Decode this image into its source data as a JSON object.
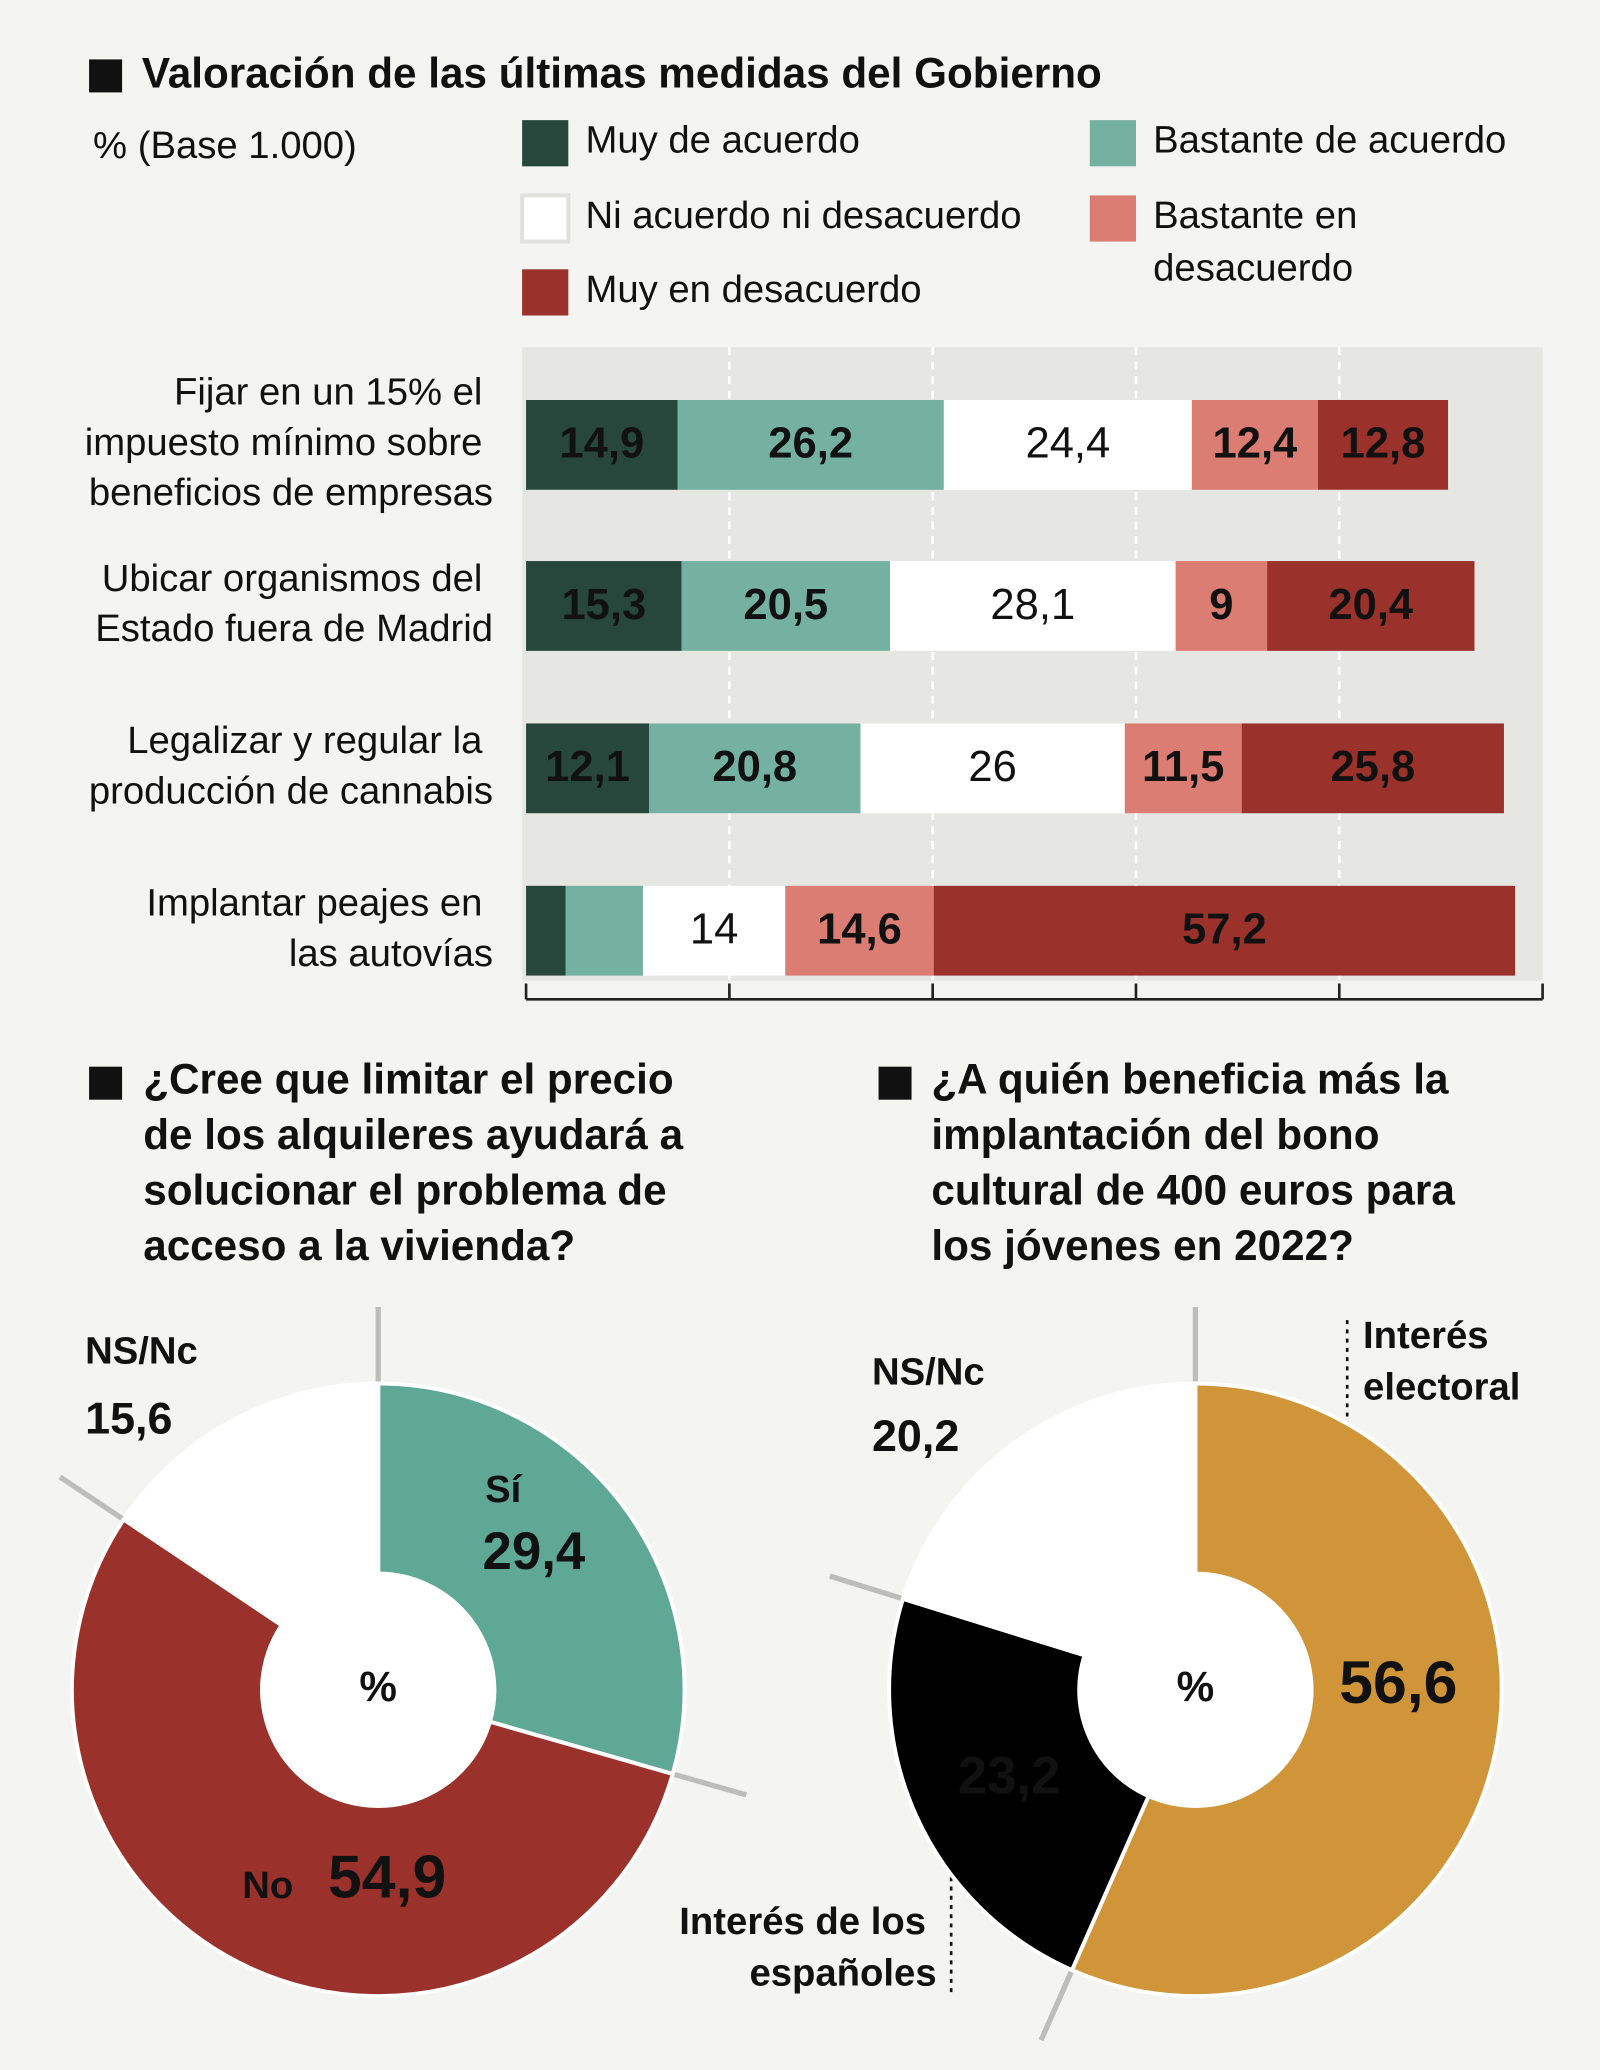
{
  "chart_data": [
    {
      "type": "bar",
      "orientation": "horizontal",
      "stacked": true,
      "title": "Valoración de las últimas medidas del Gobierno",
      "subtitle": "% (Base 1.000)",
      "categories": [
        "Fijar en un 15% el impuesto mínimo sobre beneficios de empresas",
        "Ubicar organismos del Estado fuera de Madrid",
        "Legalizar y regular la producción de cannabis",
        "Implantar peajes en las autovías"
      ],
      "series": [
        {
          "name": "Muy de acuerdo",
          "color": "#27473d",
          "label_color": "#ffffff",
          "values": [
            14.9,
            15.3,
            12.1,
            3.9
          ],
          "value_labels": [
            "14,9",
            "15,3",
            "12,1",
            null
          ]
        },
        {
          "name": "Bastante de acuerdo",
          "color": "#74b1a0",
          "label_color": "#111111",
          "values": [
            26.2,
            20.5,
            20.8,
            7.6
          ],
          "value_labels": [
            "26,2",
            "20,5",
            "20,8",
            null
          ]
        },
        {
          "name": "Ni acuerdo ni desacuerdo",
          "color": "#ffffff",
          "label_color": "#aaaaaa",
          "values": [
            24.4,
            28.1,
            26,
            14
          ],
          "value_labels": [
            "24,4",
            "28,1",
            "26",
            "14"
          ]
        },
        {
          "name": "Bastante en desacuerdo",
          "color": "#dc7d73",
          "label_color": "#111111",
          "values": [
            12.4,
            9,
            11.5,
            14.6
          ],
          "value_labels": [
            "12,4",
            "9",
            "11,5",
            "14,6"
          ]
        },
        {
          "name": "Muy en desacuerdo",
          "color": "#9b312b",
          "label_color": "#ffffff",
          "values": [
            12.8,
            20.4,
            25.8,
            57.2
          ],
          "value_labels": [
            "12,8",
            "20,4",
            "25,8",
            "57,2"
          ]
        }
      ],
      "xlim": [
        0,
        100
      ],
      "xticks": [
        0,
        20,
        40,
        60,
        80,
        100
      ],
      "grid": true
    },
    {
      "type": "pie",
      "donut": true,
      "title": "¿Cree que limitar el precio de los alquileres ayudará a solucionar el problema de acceso a la vivienda?",
      "center_label": "%",
      "categories": [
        "Sí",
        "No",
        "NS/Nc"
      ],
      "values": [
        29.4,
        54.9,
        15.6
      ],
      "value_labels": [
        "29,4",
        "54,9",
        "15,6"
      ],
      "colors": [
        "#5fa895",
        "#9b312b",
        "#ffffff"
      ],
      "name_colors": [
        "#111111",
        "#ffffff",
        "#9a9a9a"
      ],
      "label_colors": [
        "#111111",
        "#ffffff",
        "#9a9a9a"
      ]
    },
    {
      "type": "pie",
      "donut": true,
      "title": "¿A quién beneficia más la implantación del bono cultural de 400 euros para los jóvenes en 2022?",
      "center_label": "%",
      "categories": [
        "Interés electoral",
        "Interés de los españoles",
        "NS/Nc"
      ],
      "values": [
        56.6,
        23.2,
        20.2
      ],
      "value_labels": [
        "56,6",
        "23,2",
        "20,2"
      ],
      "colors": [
        "#cf9538",
        "#000000",
        "#ffffff"
      ],
      "name_colors": [
        "#111111",
        "#111111",
        "#9a9a9a"
      ],
      "label_colors": [
        "#111111",
        "#ffffff",
        "#9a9a9a"
      ]
    }
  ]
}
